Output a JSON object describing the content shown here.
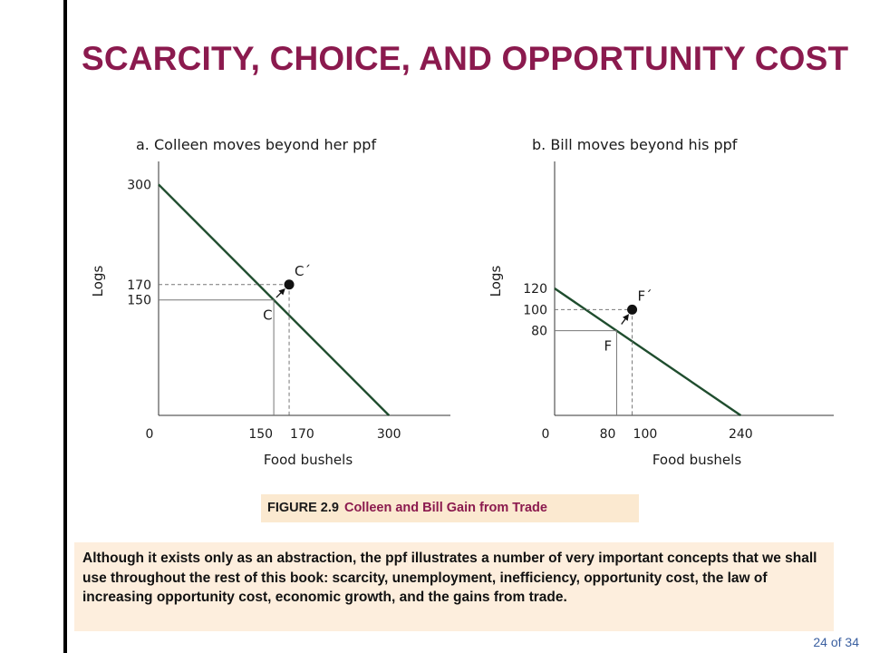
{
  "slide": {
    "title": "SCARCITY, CHOICE, AND OPPORTUNITY COST",
    "figure_number": "FIGURE 2.9",
    "figure_title": "Colleen and Bill Gain from Trade",
    "note_text": "Although it exists only as an abstraction, the ppf illustrates a number of very important concepts that we shall use throughout the rest of this book: scarcity, unemployment, inefficiency, opportunity cost, the law of increasing opportunity cost, economic growth, and the gains from trade.",
    "page_number": "24 of 34"
  },
  "colors": {
    "title": "#8b1a4e",
    "ppf_line": "#1f4d2e",
    "axis": "#333333",
    "guide": "#777777",
    "caption_bg": "#fbe9d0",
    "note_bg": "#fdeedd"
  },
  "chart_data": [
    {
      "type": "line",
      "title": "a. Colleen moves beyond her ppf",
      "xlabel": "Food bushels",
      "ylabel": "Logs",
      "xlim": [
        0,
        380
      ],
      "ylim": [
        0,
        330
      ],
      "x_ticks": [
        0,
        150,
        170,
        300
      ],
      "x_tick_labels": [
        "0",
        "150",
        "170",
        "300"
      ],
      "y_ticks": [
        300,
        170,
        150
      ],
      "y_tick_labels": [
        "300",
        "170",
        "150"
      ],
      "series": [
        {
          "x": [
            0,
            300
          ],
          "y": [
            300,
            0
          ]
        }
      ],
      "points": [
        {
          "label": "C",
          "x": 150,
          "y": 150,
          "marker": false
        },
        {
          "label": "C´",
          "x": 170,
          "y": 170,
          "marker": true
        }
      ],
      "arrow": {
        "from": [
          150,
          150
        ],
        "to": [
          170,
          170
        ]
      },
      "grid": false
    },
    {
      "type": "line",
      "title": "b. Bill moves beyond his ppf",
      "xlabel": "Food bushels",
      "ylabel": "Logs",
      "xlim": [
        0,
        360
      ],
      "ylim": [
        0,
        240
      ],
      "x_ticks": [
        0,
        80,
        100,
        240
      ],
      "x_tick_labels": [
        "0",
        "80",
        "100",
        "240"
      ],
      "y_ticks": [
        120,
        100,
        80
      ],
      "y_tick_labels": [
        "120",
        "100",
        "80"
      ],
      "series": [
        {
          "x": [
            0,
            240
          ],
          "y": [
            120,
            0
          ]
        }
      ],
      "points": [
        {
          "label": "F",
          "x": 80,
          "y": 80,
          "marker": false
        },
        {
          "label": "F´",
          "x": 100,
          "y": 100,
          "marker": true
        }
      ],
      "arrow": {
        "from": [
          80,
          80
        ],
        "to": [
          100,
          100
        ]
      },
      "grid": false
    }
  ]
}
